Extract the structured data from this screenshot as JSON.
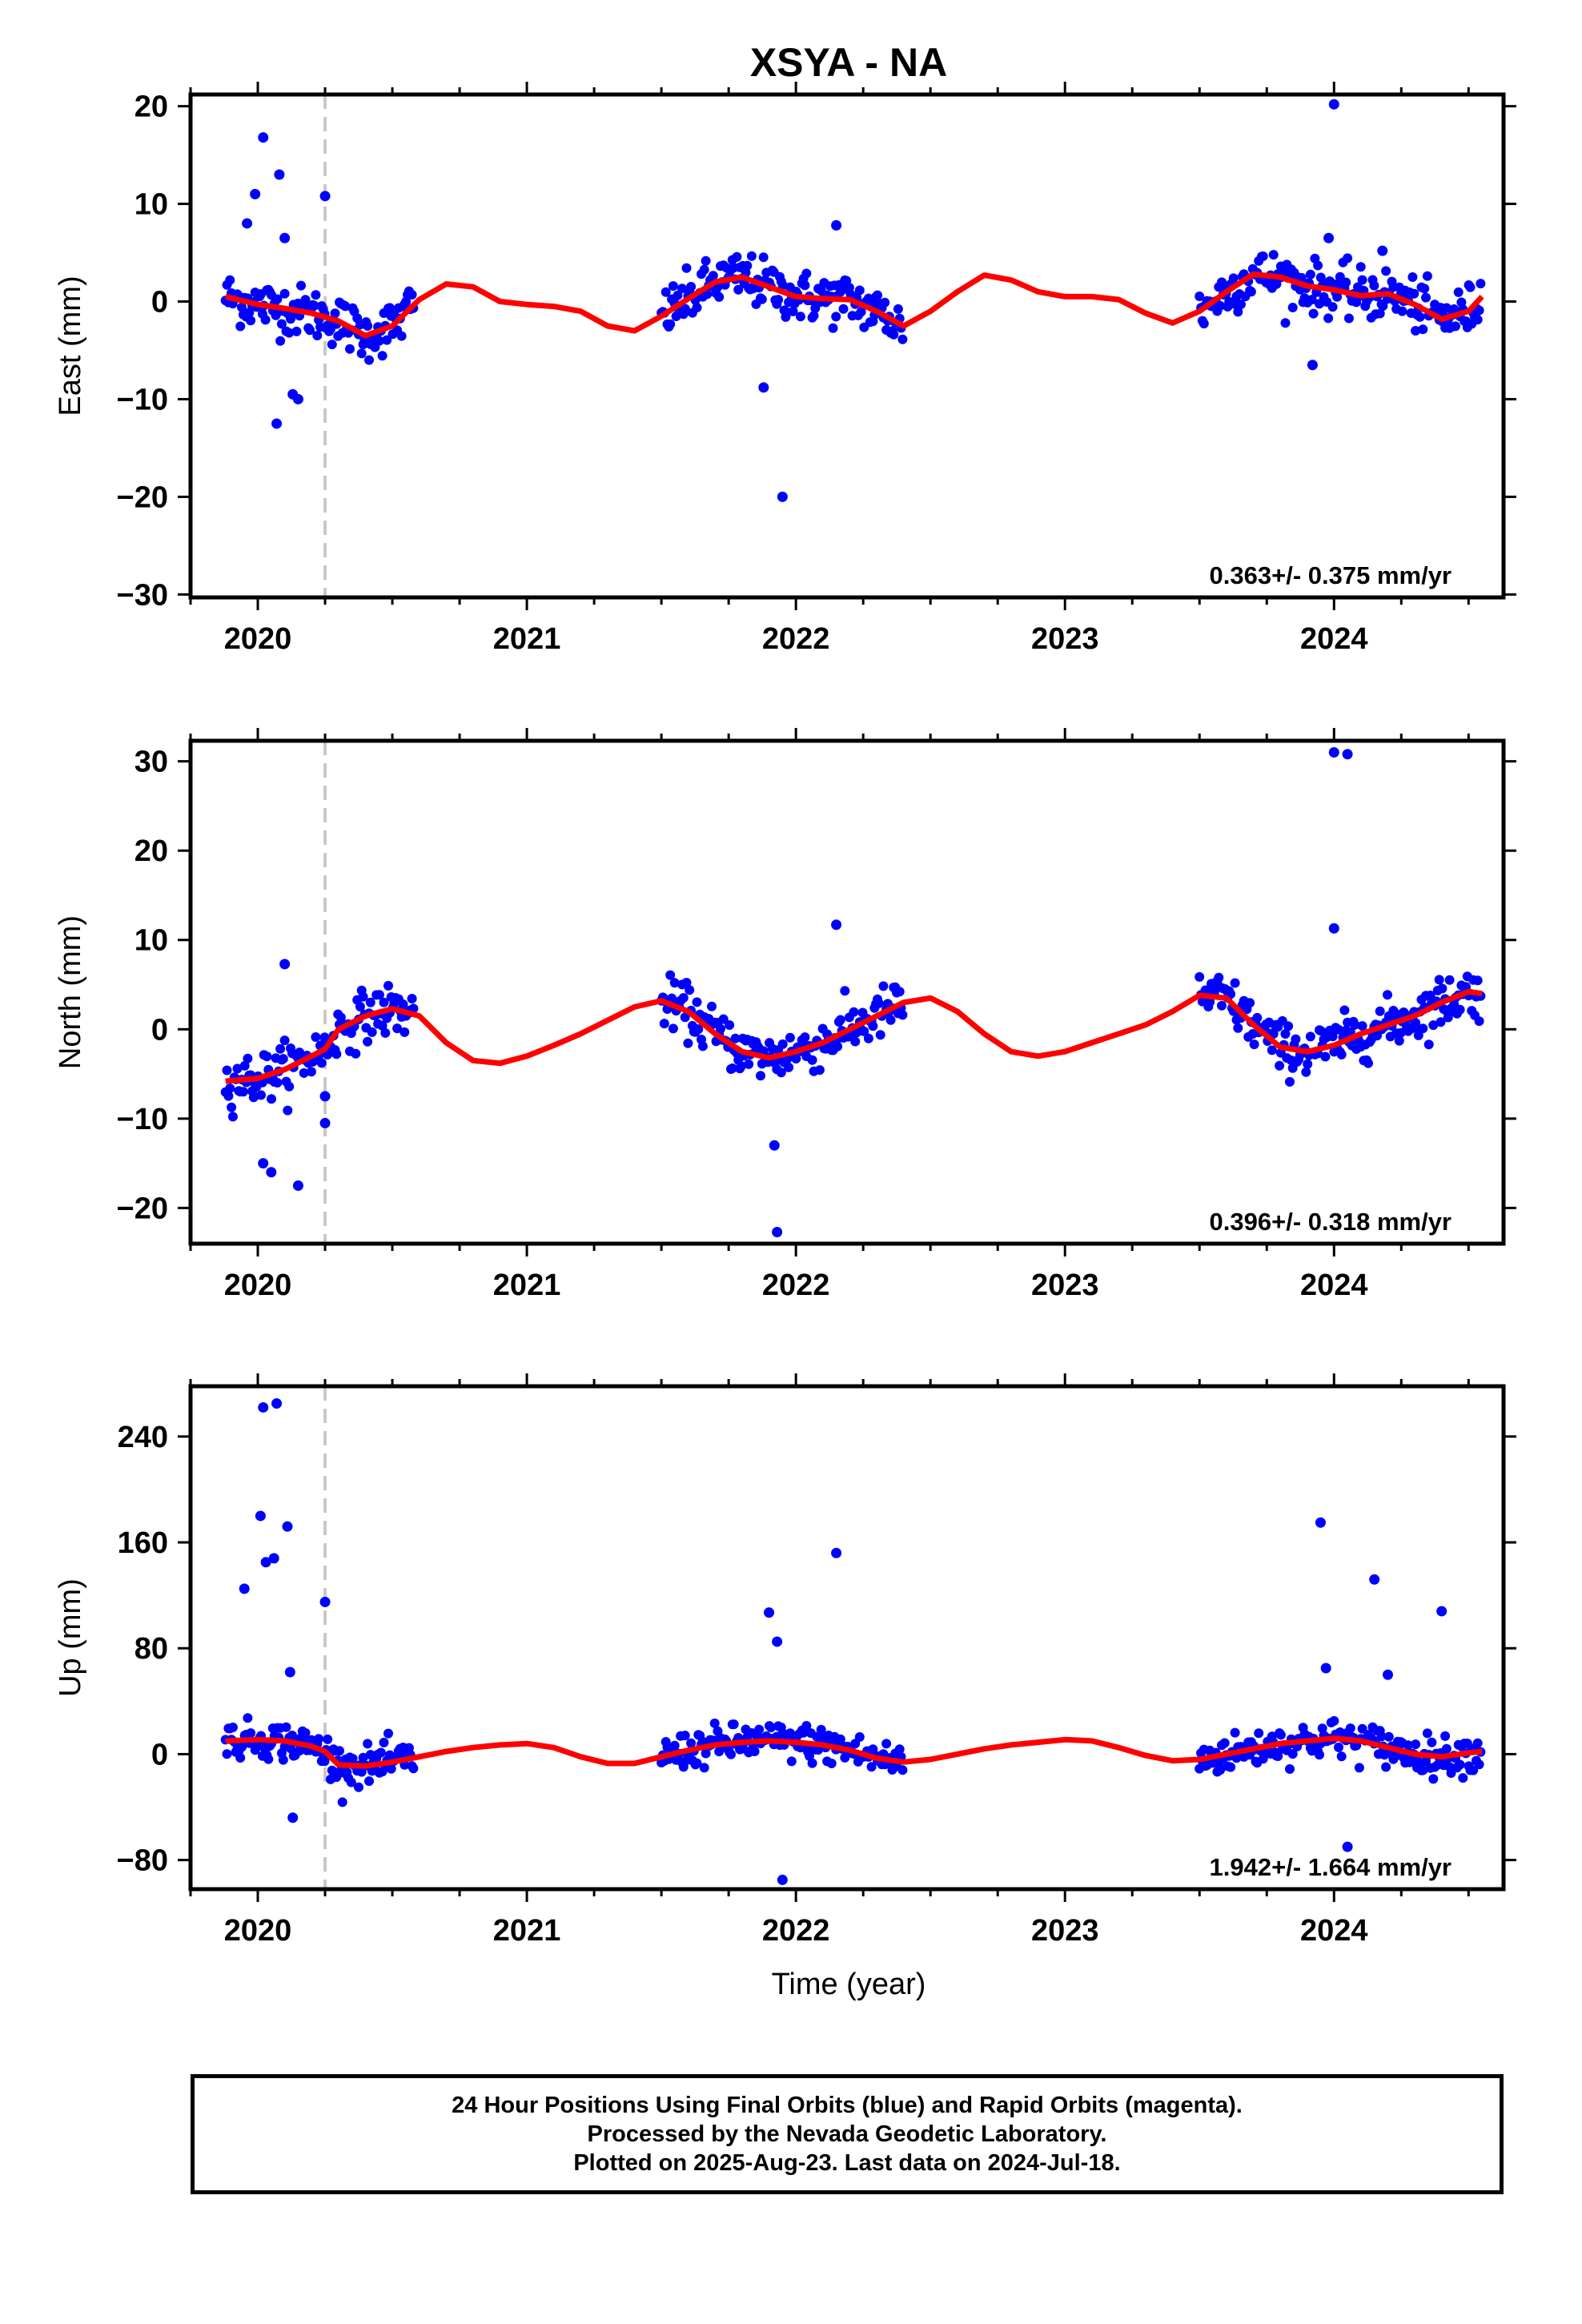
{
  "title": "XSYA - NA",
  "xlabel": "Time (year)",
  "footer": {
    "line1": "24 Hour Positions Using Final Orbits (blue) and Rapid Orbits (magenta).",
    "line2": "Processed by the Nevada Geodetic Laboratory.",
    "line3": "Plotted on 2025-Aug-23. Last data on 2024-Jul-18."
  },
  "colors": {
    "final_orbits": "#0000ff",
    "model_fit": "#ff0000",
    "break_line": "#c8c8c8",
    "axes": "#000000"
  },
  "chart_data": [
    {
      "type": "scatter",
      "component": "East",
      "ylabel": "East (mm)",
      "rate_label": "0.363+/- 0.375 mm/yr",
      "xlim": [
        2019.75,
        2024.63
      ],
      "ylim": [
        -30.3,
        21.2
      ],
      "xticks": [
        2020,
        2021,
        2022,
        2023,
        2024
      ],
      "yticks": [
        -30,
        -20,
        -10,
        0,
        10,
        20
      ],
      "equipment_change": 2020.25,
      "data_segments": [
        [
          2019.88,
          2020.58
        ],
        [
          2021.5,
          2022.4
        ],
        [
          2023.5,
          2024.55
        ]
      ],
      "series": [
        {
          "role": "points",
          "x": [
            2020.02,
            2020.08,
            2019.96,
            2020.1,
            2019.99,
            2020.15,
            2020.07,
            2020.13,
            2020.25,
            2021.95,
            2022.15,
            2021.88,
            2024.0,
            2023.92,
            2024.18,
            2023.98
          ],
          "y": [
            16.8,
            13.0,
            8.0,
            6.5,
            11.0,
            -10.0,
            -12.5,
            -9.5,
            10.8,
            -20.0,
            7.8,
            -8.8,
            20.2,
            -6.5,
            5.2,
            6.5
          ]
        },
        {
          "role": "fit",
          "x": [
            2019.88,
            2020.0,
            2020.1,
            2020.2,
            2020.3,
            2020.4,
            2020.5,
            2020.6,
            2020.7,
            2020.8,
            2020.9,
            2021.0,
            2021.1,
            2021.2,
            2021.3,
            2021.4,
            2021.5,
            2021.6,
            2021.7,
            2021.8,
            2021.9,
            2022.0,
            2022.1,
            2022.2,
            2022.3,
            2022.4,
            2022.5,
            2022.6,
            2022.7,
            2022.8,
            2022.9,
            2023.0,
            2023.1,
            2023.2,
            2023.3,
            2023.4,
            2023.5,
            2023.6,
            2023.7,
            2023.8,
            2023.9,
            2024.0,
            2024.1,
            2024.2,
            2024.3,
            2024.4,
            2024.5,
            2024.55
          ],
          "y": [
            0.5,
            -0.3,
            -0.7,
            -1.2,
            -2.0,
            -3.5,
            -2.5,
            0.2,
            1.8,
            1.5,
            0.0,
            -0.3,
            -0.5,
            -1.0,
            -2.5,
            -3.0,
            -1.5,
            0.3,
            2.0,
            2.5,
            1.5,
            0.5,
            0.3,
            0.2,
            -1.0,
            -2.5,
            -1.0,
            1.0,
            2.7,
            2.2,
            1.0,
            0.5,
            0.5,
            0.2,
            -1.2,
            -2.2,
            -1.0,
            1.0,
            2.8,
            2.5,
            1.6,
            1.2,
            0.6,
            0.8,
            -0.3,
            -1.8,
            -1.0,
            0.5
          ]
        }
      ]
    },
    {
      "type": "scatter",
      "component": "North",
      "ylabel": "North (mm)",
      "rate_label": "0.396+/- 0.318 mm/yr",
      "xlim": [
        2019.75,
        2024.63
      ],
      "ylim": [
        -24.0,
        32.3
      ],
      "xticks": [
        2020,
        2021,
        2022,
        2023,
        2024
      ],
      "yticks": [
        -20,
        -10,
        0,
        10,
        20,
        30
      ],
      "equipment_change": 2020.25,
      "data_segments": [
        [
          2019.88,
          2020.58
        ],
        [
          2021.5,
          2022.4
        ],
        [
          2023.5,
          2024.55
        ]
      ],
      "series": [
        {
          "role": "points",
          "x": [
            2020.1,
            2020.15,
            2020.02,
            2020.05,
            2020.25,
            2020.25,
            2021.93,
            2021.92,
            2022.15,
            2024.0,
            2024.05,
            2024.0
          ],
          "y": [
            7.3,
            -17.5,
            -15.0,
            -16.0,
            -7.5,
            -10.5,
            -22.7,
            -13.0,
            11.7,
            31.0,
            30.8,
            11.3
          ]
        },
        {
          "role": "fit",
          "x": [
            2019.88,
            2020.0,
            2020.1,
            2020.2,
            2020.25,
            2020.3,
            2020.4,
            2020.5,
            2020.6,
            2020.7,
            2020.8,
            2020.9,
            2021.0,
            2021.1,
            2021.2,
            2021.3,
            2021.4,
            2021.5,
            2021.6,
            2021.7,
            2021.8,
            2021.9,
            2022.0,
            2022.1,
            2022.2,
            2022.3,
            2022.4,
            2022.5,
            2022.6,
            2022.7,
            2022.8,
            2022.9,
            2023.0,
            2023.1,
            2023.2,
            2023.3,
            2023.4,
            2023.5,
            2023.6,
            2023.7,
            2023.8,
            2023.9,
            2024.0,
            2024.1,
            2024.2,
            2024.3,
            2024.4,
            2024.5,
            2024.55
          ],
          "y": [
            -5.8,
            -5.5,
            -4.5,
            -3.0,
            -2.2,
            0.0,
            1.5,
            2.3,
            1.5,
            -1.5,
            -3.5,
            -3.8,
            -3.0,
            -1.8,
            -0.5,
            1.0,
            2.5,
            3.2,
            2.0,
            -0.5,
            -2.5,
            -3.2,
            -2.5,
            -1.5,
            0.0,
            1.5,
            3.0,
            3.5,
            2.0,
            -0.5,
            -2.5,
            -3.0,
            -2.5,
            -1.5,
            -0.5,
            0.5,
            2.0,
            3.8,
            3.5,
            0.5,
            -2.0,
            -2.5,
            -1.8,
            -0.5,
            0.5,
            1.5,
            3.0,
            4.2,
            4.0
          ]
        }
      ]
    },
    {
      "type": "scatter",
      "component": "Up",
      "ylabel": "Up (mm)",
      "rate_label": "1.942+/- 1.664 mm/yr",
      "xlim": [
        2019.75,
        2024.63
      ],
      "ylim": [
        -102,
        278
      ],
      "xticks": [
        2020,
        2021,
        2022,
        2023,
        2024
      ],
      "yticks": [
        -80,
        0,
        80,
        160,
        240
      ],
      "equipment_change": 2020.25,
      "data_segments": [
        [
          2019.88,
          2020.58
        ],
        [
          2021.5,
          2022.4
        ],
        [
          2023.5,
          2024.55
        ]
      ],
      "series": [
        {
          "role": "points",
          "x": [
            2020.02,
            2020.07,
            2020.01,
            2020.11,
            2020.06,
            2019.95,
            2020.03,
            2020.12,
            2020.25,
            2020.13,
            2021.9,
            2021.93,
            2022.15,
            2021.95,
            2023.95,
            2024.15,
            2024.4,
            2024.05,
            2024.2,
            2023.97
          ],
          "y": [
            262,
            265,
            180,
            172,
            148,
            125,
            145,
            62,
            115,
            -48,
            107,
            85,
            152,
            -95,
            175,
            132,
            108,
            -70,
            60,
            65
          ]
        },
        {
          "role": "fit",
          "x": [
            2019.88,
            2020.0,
            2020.1,
            2020.2,
            2020.25,
            2020.3,
            2020.4,
            2020.5,
            2020.6,
            2020.7,
            2020.8,
            2020.9,
            2021.0,
            2021.1,
            2021.2,
            2021.3,
            2021.4,
            2021.5,
            2021.6,
            2021.7,
            2021.8,
            2021.9,
            2022.0,
            2022.1,
            2022.2,
            2022.3,
            2022.4,
            2022.5,
            2022.6,
            2022.7,
            2022.8,
            2022.9,
            2023.0,
            2023.1,
            2023.2,
            2023.3,
            2023.4,
            2023.5,
            2023.6,
            2023.7,
            2023.8,
            2023.9,
            2024.0,
            2024.1,
            2024.2,
            2024.3,
            2024.4,
            2024.5,
            2024.55
          ],
          "y": [
            10,
            11,
            10,
            6,
            2,
            -8,
            -9,
            -6,
            -2,
            2,
            5,
            7,
            8,
            5,
            -2,
            -7,
            -7,
            -2,
            3,
            7,
            9,
            10,
            9,
            7,
            3,
            -3,
            -6,
            -4,
            0,
            4,
            7,
            9,
            11,
            10,
            5,
            -1,
            -5,
            -4,
            0,
            4,
            8,
            10,
            12,
            10,
            5,
            0,
            -2,
            1,
            2
          ]
        }
      ]
    }
  ]
}
